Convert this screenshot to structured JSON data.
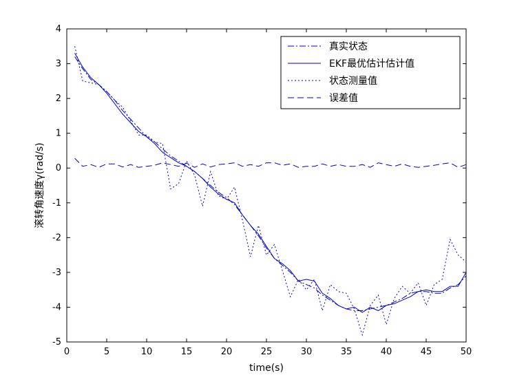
{
  "chart_data": {
    "type": "line",
    "xlabel": "time(s)",
    "ylabel": "滚转角速度γ(rad/s)",
    "xlim": [
      0,
      50
    ],
    "ylim": [
      -5,
      4
    ],
    "xticks": [
      0,
      5,
      10,
      15,
      20,
      25,
      30,
      35,
      40,
      45,
      50
    ],
    "yticks": [
      -5,
      -4,
      -3,
      -2,
      -1,
      0,
      1,
      2,
      3,
      4
    ],
    "grid": false,
    "legend_position": "top-right",
    "line_color": "#0000cc",
    "series": [
      {
        "name": "真实状态",
        "style": "dashdot",
        "x": [
          1,
          2,
          3,
          4,
          5,
          6,
          7,
          8,
          9,
          10,
          11,
          12,
          13,
          14,
          15,
          16,
          17,
          18,
          19,
          20,
          21,
          22,
          23,
          24,
          25,
          26,
          27,
          28,
          29,
          30,
          31,
          32,
          33,
          34,
          35,
          36,
          37,
          38,
          39,
          40,
          41,
          42,
          43,
          44,
          45,
          46,
          47,
          48,
          49,
          50
        ],
        "values": [
          3.2,
          2.85,
          2.55,
          2.4,
          2.2,
          1.95,
          1.65,
          1.4,
          1.15,
          0.9,
          0.75,
          0.55,
          0.35,
          0.2,
          0.05,
          -0.1,
          -0.3,
          -0.5,
          -0.7,
          -0.85,
          -1.05,
          -1.35,
          -1.65,
          -1.95,
          -2.3,
          -2.6,
          -2.8,
          -3.0,
          -3.25,
          -3.35,
          -3.45,
          -3.65,
          -3.8,
          -3.95,
          -4.05,
          -4.1,
          -4.1,
          -4.05,
          -4.0,
          -3.95,
          -3.85,
          -3.75,
          -3.6,
          -3.55,
          -3.55,
          -3.6,
          -3.6,
          -3.45,
          -3.35,
          -3.1
        ]
      },
      {
        "name": "EKF最优估计估计值",
        "style": "solid",
        "x": [
          1,
          2,
          3,
          4,
          5,
          6,
          7,
          8,
          9,
          10,
          11,
          12,
          13,
          14,
          15,
          16,
          17,
          18,
          19,
          20,
          21,
          22,
          23,
          24,
          25,
          26,
          27,
          28,
          29,
          30,
          31,
          32,
          33,
          34,
          35,
          36,
          37,
          38,
          39,
          40,
          41,
          42,
          43,
          44,
          45,
          46,
          47,
          48,
          49,
          50
        ],
        "values": [
          3.3,
          2.9,
          2.6,
          2.4,
          2.15,
          1.85,
          1.55,
          1.3,
          1.05,
          0.9,
          0.7,
          0.45,
          0.3,
          0.15,
          0.05,
          -0.1,
          -0.3,
          -0.55,
          -0.75,
          -0.9,
          -1.0,
          -1.35,
          -1.65,
          -1.9,
          -2.25,
          -2.6,
          -2.75,
          -2.95,
          -3.25,
          -3.2,
          -3.25,
          -3.6,
          -3.75,
          -3.95,
          -4.05,
          -4.0,
          -4.15,
          -4.0,
          -4.1,
          -3.95,
          -3.9,
          -3.8,
          -3.7,
          -3.55,
          -3.5,
          -3.55,
          -3.55,
          -3.4,
          -3.4,
          -3.0
        ]
      },
      {
        "name": "状态测量值",
        "style": "dotted",
        "x": [
          1,
          2,
          3,
          4,
          5,
          6,
          7,
          8,
          9,
          10,
          11,
          12,
          13,
          14,
          15,
          16,
          17,
          18,
          19,
          20,
          21,
          22,
          23,
          24,
          25,
          26,
          27,
          28,
          29,
          30,
          31,
          32,
          33,
          34,
          35,
          36,
          37,
          38,
          39,
          40,
          41,
          42,
          43,
          44,
          45,
          46,
          47,
          48,
          49,
          50
        ],
        "values": [
          3.5,
          2.5,
          2.45,
          2.4,
          2.2,
          1.95,
          1.75,
          1.35,
          0.95,
          0.95,
          0.75,
          0.7,
          -0.6,
          -0.45,
          0.2,
          -0.2,
          -1.1,
          -0.1,
          -0.8,
          -0.9,
          -0.55,
          -1.5,
          -2.55,
          -1.65,
          -2.5,
          -2.2,
          -2.95,
          -3.7,
          -3.2,
          -3.5,
          -3.2,
          -4.1,
          -3.35,
          -3.55,
          -3.6,
          -4.05,
          -4.8,
          -3.95,
          -3.65,
          -4.5,
          -3.75,
          -3.4,
          -3.6,
          -3.3,
          -3.95,
          -3.35,
          -3.2,
          -2.05,
          -2.5,
          -2.7
        ]
      },
      {
        "name": "误差值",
        "style": "dashed",
        "x": [
          1,
          2,
          3,
          4,
          5,
          6,
          7,
          8,
          9,
          10,
          11,
          12,
          13,
          14,
          15,
          16,
          17,
          18,
          19,
          20,
          21,
          22,
          23,
          24,
          25,
          26,
          27,
          28,
          29,
          30,
          31,
          32,
          33,
          34,
          35,
          36,
          37,
          38,
          39,
          40,
          41,
          42,
          43,
          44,
          45,
          46,
          47,
          48,
          49,
          50
        ],
        "values": [
          0.28,
          0.05,
          0.1,
          0.02,
          0.12,
          0.12,
          0.03,
          0.1,
          0.02,
          0.05,
          0.08,
          0.15,
          0.1,
          0.05,
          0.14,
          0.02,
          0.12,
          0.03,
          0.1,
          0.12,
          0.15,
          0.05,
          0.1,
          0.05,
          0.15,
          0.15,
          0.08,
          0.12,
          0.02,
          0.05,
          0.05,
          0.12,
          0.05,
          0.1,
          0.05,
          0.05,
          0.1,
          0.02,
          0.15,
          0.1,
          0.05,
          0.12,
          0.05,
          0.02,
          0.05,
          0.08,
          0.12,
          0.15,
          0.02,
          0.1
        ]
      }
    ]
  }
}
